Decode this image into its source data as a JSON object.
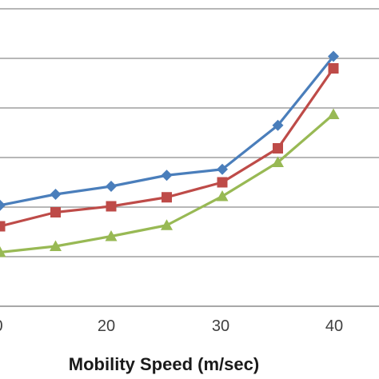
{
  "chart_data": {
    "type": "line",
    "xlabel": "Mobility Speed (m/sec)",
    "ylabel": "",
    "xlim": [
      10,
      40
    ],
    "x_ticks": [
      "0",
      "20",
      "30",
      "40"
    ],
    "grid": true,
    "legend": "none",
    "series": [
      {
        "color": "#4a7ebb",
        "marker": "diamond",
        "x": [
          10,
          15,
          20,
          25,
          30,
          35,
          40
        ],
        "y": [
          0.505,
          0.56,
          0.6,
          0.655,
          0.685,
          0.905,
          1.25
        ]
      },
      {
        "color": "#be4b48",
        "marker": "square",
        "x": [
          10,
          15,
          20,
          25,
          30,
          35,
          40
        ],
        "y": [
          0.4,
          0.47,
          0.5,
          0.545,
          0.62,
          0.79,
          1.19
        ]
      },
      {
        "color": "#98b954",
        "marker": "triangle",
        "x": [
          10,
          15,
          20,
          25,
          30,
          35,
          40
        ],
        "y": [
          0.27,
          0.3,
          0.35,
          0.405,
          0.55,
          0.72,
          0.96
        ]
      }
    ]
  }
}
